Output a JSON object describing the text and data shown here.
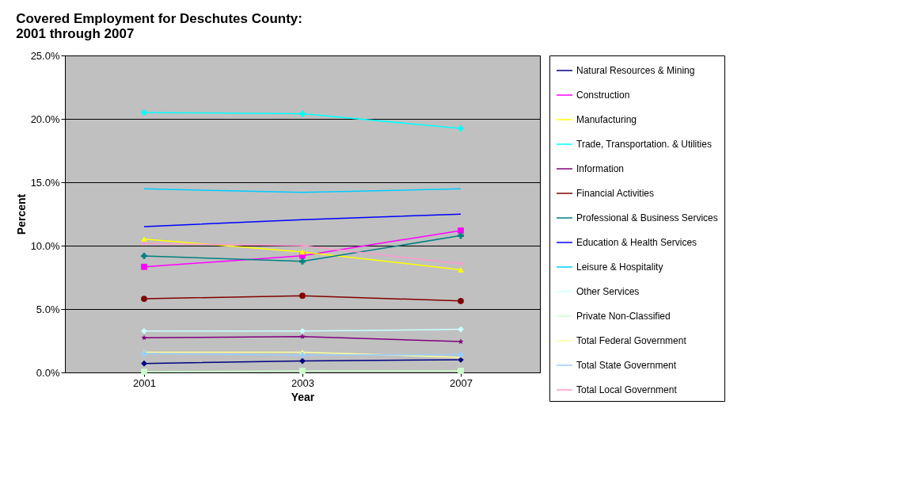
{
  "chart_data": {
    "type": "line",
    "title": "Covered Employment for Deschutes County:\n2001 through 2007",
    "xlabel": "Year",
    "ylabel": "Percent",
    "categories": [
      "2001",
      "2003",
      "2007"
    ],
    "ylim": [
      0,
      25
    ],
    "yticks": [
      {
        "value": 0,
        "label": "0.0%"
      },
      {
        "value": 5,
        "label": "5.0%"
      },
      {
        "value": 10,
        "label": "10.0%"
      },
      {
        "value": 15,
        "label": "15.0%"
      },
      {
        "value": 20,
        "label": "20.0%"
      },
      {
        "value": 25,
        "label": "25.0%"
      }
    ],
    "grid": "y",
    "legend": "right",
    "series": [
      {
        "name": "Natural Resources & Mining",
        "color": "#000080",
        "marker": "diamond",
        "values": [
          0.71,
          0.9,
          1.0
        ]
      },
      {
        "name": "Construction",
        "color": "#ff00ff",
        "marker": "square",
        "values": [
          8.33,
          9.21,
          11.19
        ]
      },
      {
        "name": "Manufacturing",
        "color": "#ffff00",
        "marker": "triangle",
        "values": [
          10.52,
          9.5,
          8.1
        ]
      },
      {
        "name": "Trade, Transportation. & Utilities",
        "color": "#00ffff",
        "marker": "cross",
        "values": [
          20.5,
          20.4,
          19.25
        ]
      },
      {
        "name": "Information",
        "color": "#800080",
        "marker": "star",
        "values": [
          2.74,
          2.83,
          2.43
        ]
      },
      {
        "name": "Financial Activities",
        "color": "#800000",
        "marker": "circle",
        "values": [
          5.81,
          6.05,
          5.64
        ]
      },
      {
        "name": "Professional & Business Services",
        "color": "#008080",
        "marker": "cross",
        "values": [
          9.19,
          8.76,
          10.79
        ]
      },
      {
        "name": "Education & Health Services",
        "color": "#0000ff",
        "marker": "none",
        "values": [
          11.5,
          12.05,
          12.48
        ]
      },
      {
        "name": "Leisure & Hospitality",
        "color": "#00ccff",
        "marker": "none",
        "values": [
          14.48,
          14.2,
          14.48
        ]
      },
      {
        "name": "Other Services",
        "color": "#ccffff",
        "marker": "diamond",
        "values": [
          3.26,
          3.26,
          3.4
        ]
      },
      {
        "name": "Private Non-Classified",
        "color": "#ccffcc",
        "marker": "square",
        "values": [
          0.05,
          0.12,
          0.12
        ]
      },
      {
        "name": "Total Federal Government",
        "color": "#ffff99",
        "marker": "triangle",
        "values": [
          1.6,
          1.6,
          1.19
        ]
      },
      {
        "name": "Total State Government",
        "color": "#99ccff",
        "marker": "cross",
        "values": [
          1.48,
          1.36,
          1.4
        ]
      },
      {
        "name": "Total Local Government",
        "color": "#ff99cc",
        "marker": "star",
        "values": [
          10.17,
          10.0,
          8.57
        ]
      }
    ]
  }
}
